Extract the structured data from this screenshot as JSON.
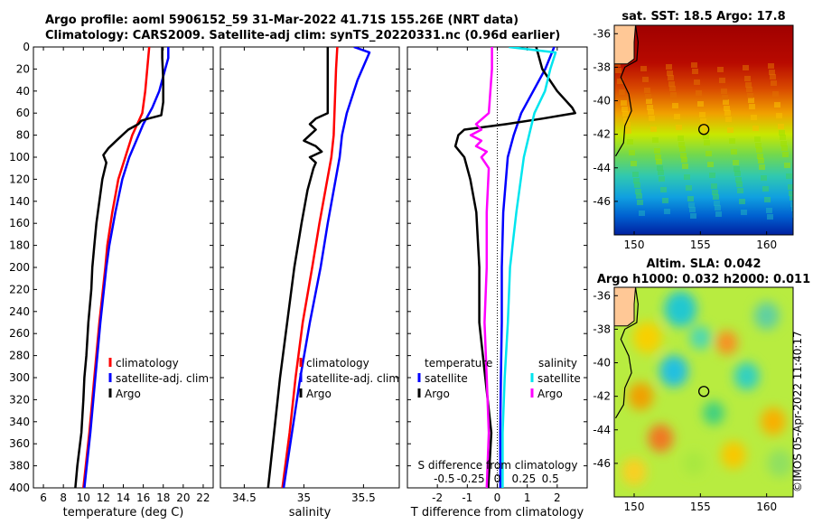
{
  "titles": {
    "line1": "Argo profile: aoml 5906152_59 31-Mar-2022 41.71S 155.26E (NRT data)",
    "line2": "Climatology: CARS2009. Satellite-adj clim: synTS_20220331.nc (0.96d earlier)"
  },
  "colors": {
    "climatology": "#ff0000",
    "satellite": "#0000ff",
    "argo": "#000000",
    "sat_salinity": "#00e5ee",
    "argo_salinity": "#ff00ff"
  },
  "chart_data": [
    {
      "id": "temperature",
      "type": "line",
      "xlabel": "temperature (deg C)",
      "ylabel": "",
      "xlim": [
        5,
        23
      ],
      "ylim": [
        400,
        0
      ],
      "xticks": [
        "6",
        "8",
        "10",
        "12",
        "14",
        "16",
        "18",
        "20",
        "22"
      ],
      "yticks": [
        "0",
        "20",
        "40",
        "60",
        "80",
        "100",
        "120",
        "140",
        "160",
        "180",
        "200",
        "220",
        "240",
        "260",
        "280",
        "300",
        "320",
        "340",
        "360",
        "380",
        "400"
      ],
      "legend": [
        "climatology",
        "satellite-adj. clim",
        "Argo"
      ],
      "series": [
        {
          "name": "climatology",
          "depth": [
            0,
            20,
            40,
            60,
            70,
            80,
            100,
            120,
            150,
            180,
            200,
            250,
            300,
            350,
            400
          ],
          "values": [
            16.6,
            16.4,
            16.2,
            15.9,
            15.4,
            14.9,
            14.2,
            13.5,
            12.9,
            12.4,
            12.2,
            11.6,
            11.1,
            10.6,
            10.0
          ]
        },
        {
          "name": "satellite-adj. clim",
          "depth": [
            0,
            10,
            20,
            40,
            55,
            70,
            85,
            100,
            120,
            150,
            180,
            200,
            250,
            300,
            350,
            400
          ],
          "values": [
            18.5,
            18.5,
            18.2,
            17.6,
            16.9,
            16.0,
            15.3,
            14.6,
            13.9,
            13.2,
            12.6,
            12.3,
            11.7,
            11.2,
            10.7,
            10.1
          ]
        },
        {
          "name": "Argo",
          "depth": [
            0,
            10,
            30,
            50,
            62,
            65,
            67,
            70,
            75,
            80,
            85,
            92,
            98,
            105,
            120,
            140,
            160,
            180,
            200,
            220,
            250,
            280,
            300,
            320,
            350,
            380,
            400
          ],
          "values": [
            17.9,
            17.9,
            18.0,
            18.0,
            17.8,
            16.5,
            15.8,
            15.5,
            14.5,
            13.9,
            13.3,
            12.5,
            12.0,
            12.3,
            11.9,
            11.6,
            11.3,
            11.1,
            10.9,
            10.8,
            10.5,
            10.3,
            10.1,
            10.0,
            9.8,
            9.4,
            9.2
          ]
        }
      ]
    },
    {
      "id": "salinity",
      "type": "line",
      "xlabel": "salinity",
      "ylabel": "",
      "xlim": [
        34.3,
        35.8
      ],
      "ylim": [
        400,
        0
      ],
      "xticks": [
        "34.5",
        "35",
        "35.5"
      ],
      "legend": [
        "climatology",
        "satellite-adj. clim",
        "Argo"
      ],
      "series": [
        {
          "name": "climatology",
          "depth": [
            0,
            20,
            50,
            80,
            100,
            130,
            160,
            200,
            250,
            300,
            350,
            400
          ],
          "values": [
            35.28,
            35.27,
            35.26,
            35.25,
            35.23,
            35.18,
            35.13,
            35.07,
            34.99,
            34.93,
            34.88,
            34.82
          ]
        },
        {
          "name": "satellite-adj. clim",
          "depth": [
            0,
            5,
            30,
            60,
            80,
            100,
            130,
            160,
            200,
            250,
            300,
            350,
            400
          ],
          "values": [
            35.42,
            35.55,
            35.45,
            35.36,
            35.32,
            35.3,
            35.25,
            35.2,
            35.14,
            35.05,
            34.97,
            34.9,
            34.83
          ]
        },
        {
          "name": "Argo",
          "depth": [
            0,
            20,
            40,
            60,
            65,
            70,
            75,
            80,
            85,
            90,
            95,
            100,
            105,
            110,
            130,
            160,
            200,
            250,
            300,
            350,
            400
          ],
          "values": [
            35.2,
            35.2,
            35.2,
            35.2,
            35.1,
            35.05,
            35.1,
            35.05,
            35.0,
            35.1,
            35.15,
            35.05,
            35.1,
            35.08,
            35.03,
            34.98,
            34.92,
            34.86,
            34.8,
            34.75,
            34.7
          ]
        }
      ]
    },
    {
      "id": "difference",
      "type": "line",
      "xlabel": "T difference from climatology",
      "xlabel_top": "S difference from climatology",
      "xlim": [
        -3,
        3
      ],
      "ylim": [
        400,
        0
      ],
      "xticks": [
        "-2",
        "-1",
        "0",
        "1",
        "2"
      ],
      "s_ticks": [
        "-0.5",
        "-0.25",
        "0",
        "0.25",
        "0.5"
      ],
      "legend_temp_title": "temperature",
      "legend_sal_title": "salinity",
      "legend": [
        "satellite",
        "Argo",
        "satellite",
        "Argo"
      ],
      "series": [
        {
          "name": "temperature satellite",
          "depth": [
            0,
            20,
            40,
            60,
            80,
            100,
            150,
            200,
            250,
            300,
            350,
            400
          ],
          "values": [
            1.9,
            1.6,
            1.2,
            0.8,
            0.55,
            0.35,
            0.2,
            0.15,
            0.15,
            0.12,
            0.1,
            0.1
          ]
        },
        {
          "name": "temperature Argo",
          "depth": [
            0,
            20,
            40,
            55,
            60,
            65,
            70,
            75,
            80,
            90,
            100,
            120,
            150,
            200,
            250,
            300,
            350,
            400
          ],
          "values": [
            1.3,
            1.5,
            2.0,
            2.5,
            2.6,
            1.5,
            0.3,
            -1.1,
            -1.3,
            -1.4,
            -1.1,
            -0.9,
            -0.7,
            -0.6,
            -0.6,
            -0.4,
            -0.2,
            -0.3
          ]
        },
        {
          "name": "salinity satellite",
          "depth": [
            0,
            5,
            20,
            40,
            60,
            80,
            100,
            150,
            200,
            250,
            300,
            350,
            400
          ],
          "values": [
            0.11,
            0.55,
            0.5,
            0.45,
            0.35,
            0.3,
            0.25,
            0.18,
            0.12,
            0.1,
            0.07,
            0.05,
            0.05
          ]
        },
        {
          "name": "salinity Argo",
          "depth": [
            0,
            20,
            60,
            70,
            75,
            80,
            85,
            90,
            95,
            100,
            110,
            150,
            200,
            250,
            300,
            350,
            400
          ],
          "values": [
            -0.05,
            -0.05,
            -0.08,
            -0.2,
            -0.15,
            -0.25,
            -0.15,
            -0.2,
            -0.1,
            -0.15,
            -0.08,
            -0.1,
            -0.1,
            -0.12,
            -0.1,
            -0.08,
            -0.1
          ]
        }
      ]
    },
    {
      "id": "sst_map",
      "type": "heatmap",
      "title": "sat. SST: 18.5 Argo: 17.8",
      "xlim": [
        148.5,
        162
      ],
      "ylim": [
        -48,
        -35.5
      ],
      "xticks": [
        "150",
        "155",
        "160"
      ],
      "yticks": [
        "-36",
        "-38",
        "-40",
        "-42",
        "-44",
        "-46"
      ],
      "marker": {
        "lon": 155.26,
        "lat": -41.71
      }
    },
    {
      "id": "sla_map",
      "type": "heatmap",
      "title_line1": "Altim. SLA: 0.042",
      "title_line2": "Argo h1000: 0.032 h2000: 0.011",
      "xlim": [
        148.5,
        162
      ],
      "ylim": [
        -48,
        -35.5
      ],
      "xticks": [
        "150",
        "155",
        "160"
      ],
      "yticks": [
        "-36",
        "-38",
        "-40",
        "-42",
        "-44",
        "-46"
      ],
      "marker": {
        "lon": 155.26,
        "lat": -41.71
      }
    }
  ],
  "footer": {
    "credit": "©IMOS 05-Apr-2022 11:40:17"
  }
}
